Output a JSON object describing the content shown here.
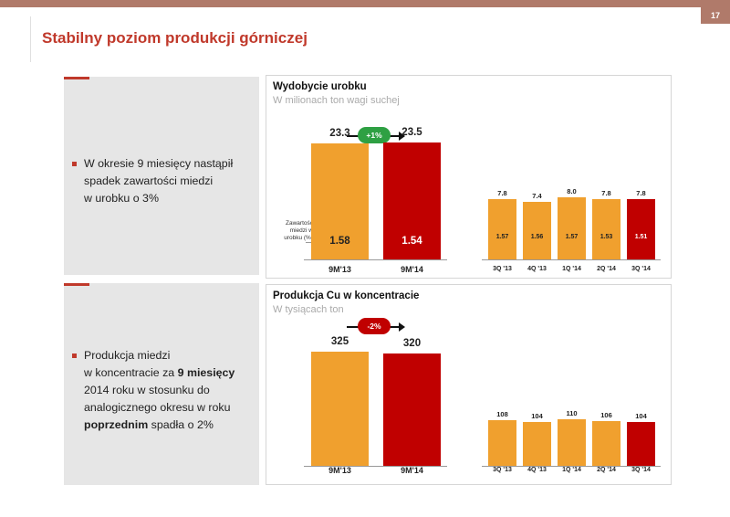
{
  "page": {
    "title": "Stabilny poziom produkcji górniczej",
    "page_number": "17",
    "colors": {
      "accent_red": "#c00000",
      "orange": "#f0a02e",
      "header_bar": "#b07a6a",
      "badge_green": "#2ea043"
    }
  },
  "left_panels": [
    {
      "lines": [
        {
          "t": "W okresie 9 miesięcy nastąpił"
        },
        {
          "t": "spadek zawartości miedzi"
        },
        {
          "t": "w urobku o 3%"
        }
      ]
    },
    {
      "lines": [
        {
          "t": "Produkcja miedzi"
        },
        {
          "pre": "w koncentracie za ",
          "b": "9 miesięcy"
        },
        {
          "t": "2014 roku w stosunku  do"
        },
        {
          "t": "analogicznego okresu w roku"
        },
        {
          "b": "poprzednim",
          "post": " spadła o 2%"
        }
      ]
    }
  ],
  "chart_data": [
    {
      "type": "bar",
      "title": "Wydobycie urobku",
      "subtitle": "W milionach ton wagi suchej",
      "series_label": "Zawartość miedzi w urobku (%)",
      "growth_label": "+1%",
      "main": {
        "categories": [
          "9M'13",
          "9M'14"
        ],
        "values": [
          23.3,
          23.5
        ],
        "value_labels": [
          "23.3",
          "23.5"
        ],
        "cu_content": [
          "1.58",
          "1.54"
        ]
      },
      "quarterly": {
        "categories": [
          "3Q '13",
          "4Q '13",
          "1Q '14",
          "2Q '14",
          "3Q '14"
        ],
        "values": [
          7.8,
          7.4,
          8.0,
          7.8,
          7.8
        ],
        "value_labels": [
          "7.8",
          "7.4",
          "8.0",
          "7.8",
          "7.8"
        ],
        "cu_content": [
          "1.57",
          "1.56",
          "1.57",
          "1.53",
          "1.51"
        ]
      }
    },
    {
      "type": "bar",
      "title": "Produkcja Cu w koncentracie",
      "subtitle": "W tysiącach ton",
      "growth_label": "-2%",
      "main": {
        "categories": [
          "9M'13",
          "9M'14"
        ],
        "values": [
          325,
          320
        ],
        "value_labels": [
          "325",
          "320"
        ]
      },
      "quarterly": {
        "categories": [
          "3Q '13",
          "4Q '13",
          "1Q '14",
          "2Q '14",
          "3Q '14"
        ],
        "values": [
          108,
          104,
          110,
          106,
          104
        ],
        "value_labels": [
          "108",
          "104",
          "110",
          "106",
          "104"
        ]
      }
    }
  ]
}
